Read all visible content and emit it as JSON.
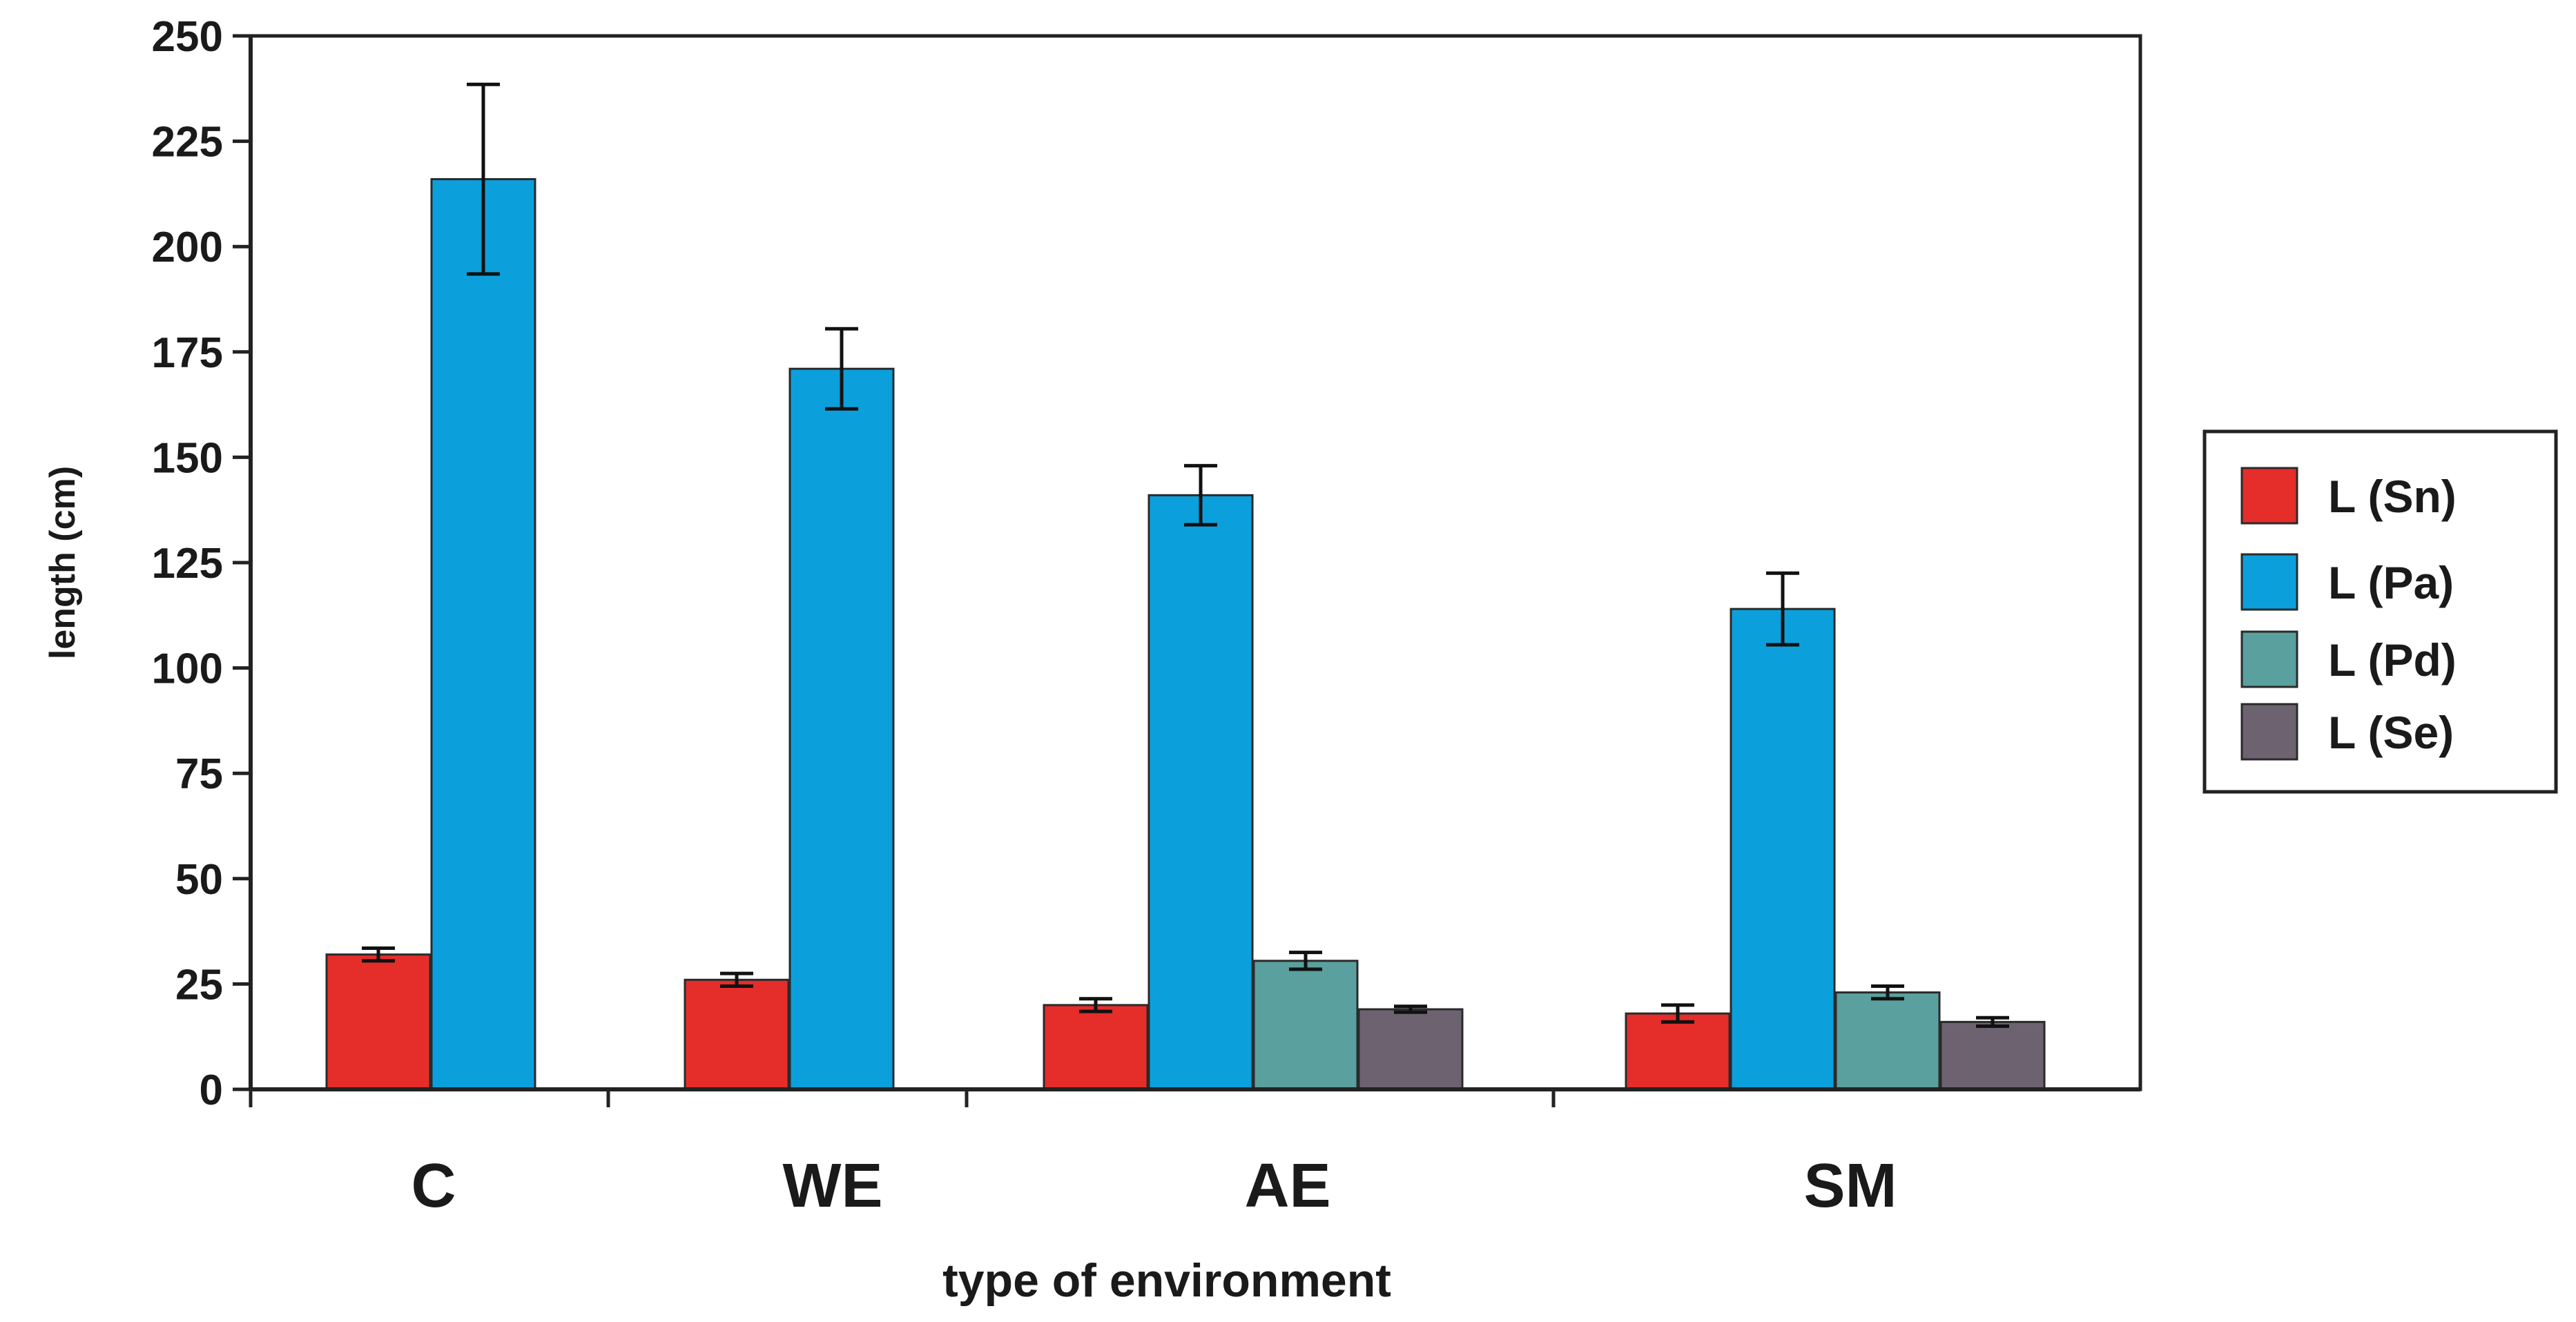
{
  "chart_data": {
    "type": "bar",
    "title": "",
    "xlabel": "type of environment",
    "ylabel": "length (cm)",
    "ylim": [
      0,
      250
    ],
    "yticks": [
      0,
      25,
      50,
      75,
      100,
      125,
      150,
      175,
      200,
      225,
      250
    ],
    "grid": false,
    "legend_position": "right",
    "categories": [
      "C",
      "WE",
      "AE",
      "SM"
    ],
    "series": [
      {
        "name": "L (Sn)",
        "color": "#e52d2a",
        "values": [
          32,
          26,
          20,
          18
        ],
        "errors": [
          1.5,
          1.5,
          1.5,
          2
        ]
      },
      {
        "name": "L (Pa)",
        "color": "#0ba0dc",
        "values": [
          216,
          171,
          141,
          114
        ],
        "errors": [
          22.5,
          9.5,
          7,
          8.5
        ]
      },
      {
        "name": "L (Pd)",
        "color": "#5aa09e",
        "values": [
          null,
          null,
          30.5,
          23
        ],
        "errors": [
          null,
          null,
          2,
          1.5
        ]
      },
      {
        "name": "L (Se)",
        "color": "#6d6370",
        "values": [
          null,
          null,
          19,
          16
        ],
        "errors": [
          null,
          null,
          0.7,
          1
        ]
      }
    ]
  }
}
